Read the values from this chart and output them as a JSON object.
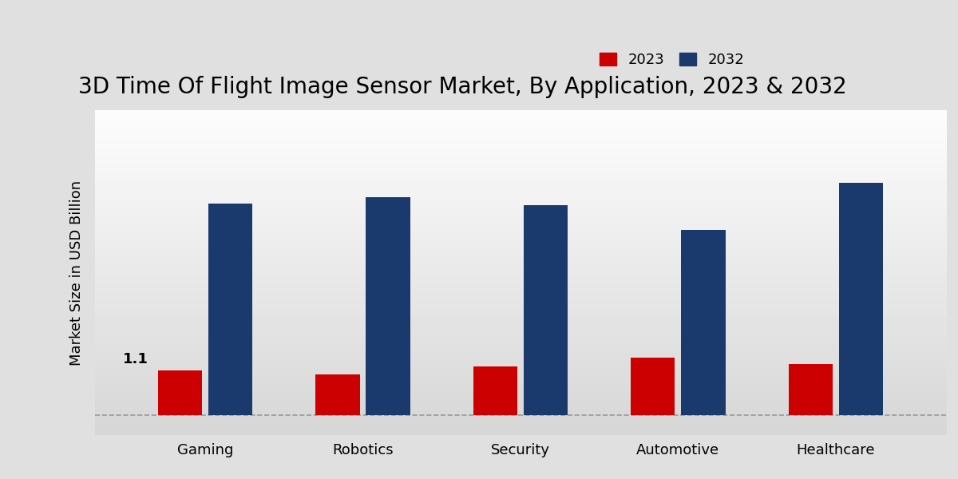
{
  "title": "3D Time Of Flight Image Sensor Market, By Application, 2023 & 2032",
  "categories": [
    "Gaming",
    "Robotics",
    "Security",
    "Automotive",
    "Healthcare"
  ],
  "values_2023": [
    1.1,
    1.0,
    1.2,
    1.4,
    1.25
  ],
  "values_2032": [
    5.2,
    5.35,
    5.15,
    4.55,
    5.7
  ],
  "color_2023": "#cc0000",
  "color_2032": "#1a3a6e",
  "ylabel": "Market Size in USD Billion",
  "bar_annotation": "1.1",
  "legend_labels": [
    "2023",
    "2032"
  ],
  "ylim": [
    -0.5,
    7.5
  ],
  "title_fontsize": 20,
  "axis_label_fontsize": 13,
  "tick_fontsize": 13,
  "legend_fontsize": 13,
  "bar_width": 0.28,
  "bar_gap": 0.04
}
